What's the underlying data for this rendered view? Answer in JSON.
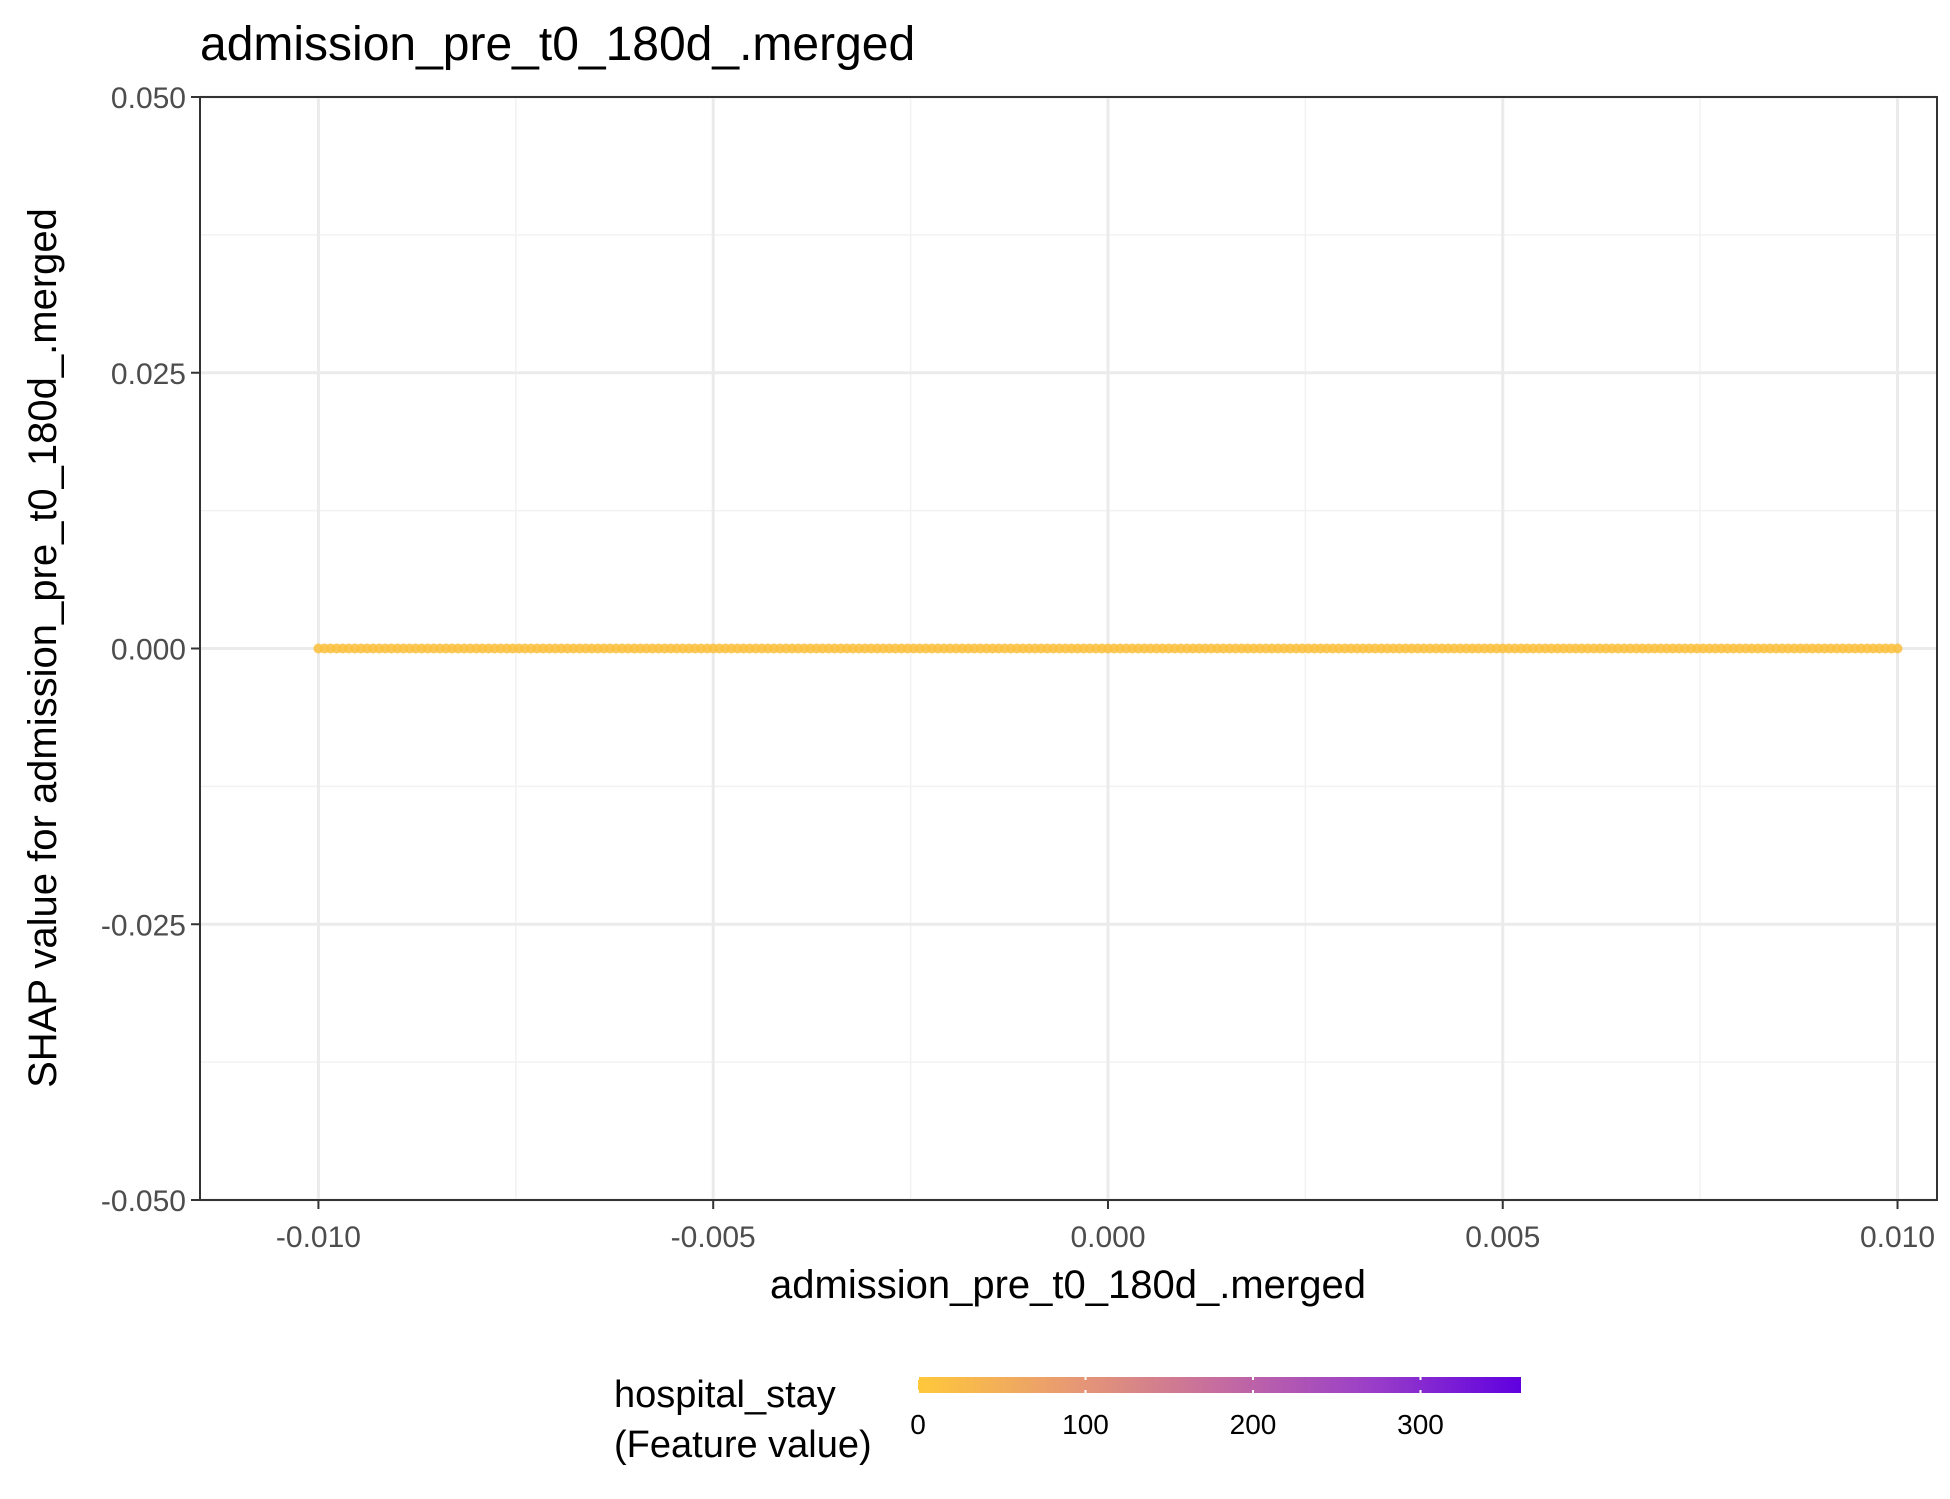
{
  "chart_data": {
    "type": "scatter",
    "title": "admission_pre_t0_180d_.merged",
    "xlabel": "admission_pre_t0_180d_.merged",
    "ylabel": "SHAP value for admission_pre_t0_180d_.merged",
    "xlim": [
      -0.0115,
      0.0105
    ],
    "ylim": [
      -0.05,
      0.05
    ],
    "x_ticks": [
      -0.01,
      -0.005,
      0.0,
      0.005,
      0.01
    ],
    "x_tick_labels": [
      "-0.010",
      "-0.005",
      "0.000",
      "0.005",
      "0.010"
    ],
    "y_ticks": [
      -0.05,
      -0.025,
      0.0,
      0.025,
      0.05
    ],
    "y_tick_labels": [
      "-0.050",
      "-0.025",
      "0.000",
      "0.025",
      "0.050"
    ],
    "grid": true,
    "series": [
      {
        "x_range": [
          -0.01,
          0.01
        ],
        "y": 0.0,
        "color": "#FCC03C"
      }
    ],
    "color_scale": {
      "title_line1": "hospital_stay",
      "title_line2": "(Feature value)",
      "range": [
        0,
        360
      ],
      "ticks": [
        0,
        100,
        200,
        300
      ],
      "tick_labels": [
        "0",
        "100",
        "200",
        "300"
      ],
      "colors": [
        "#FFC83A",
        "#E89A72",
        "#C56CA0",
        "#9A3FC8",
        "#5F00E0"
      ],
      "legend_position": "bottom"
    }
  }
}
